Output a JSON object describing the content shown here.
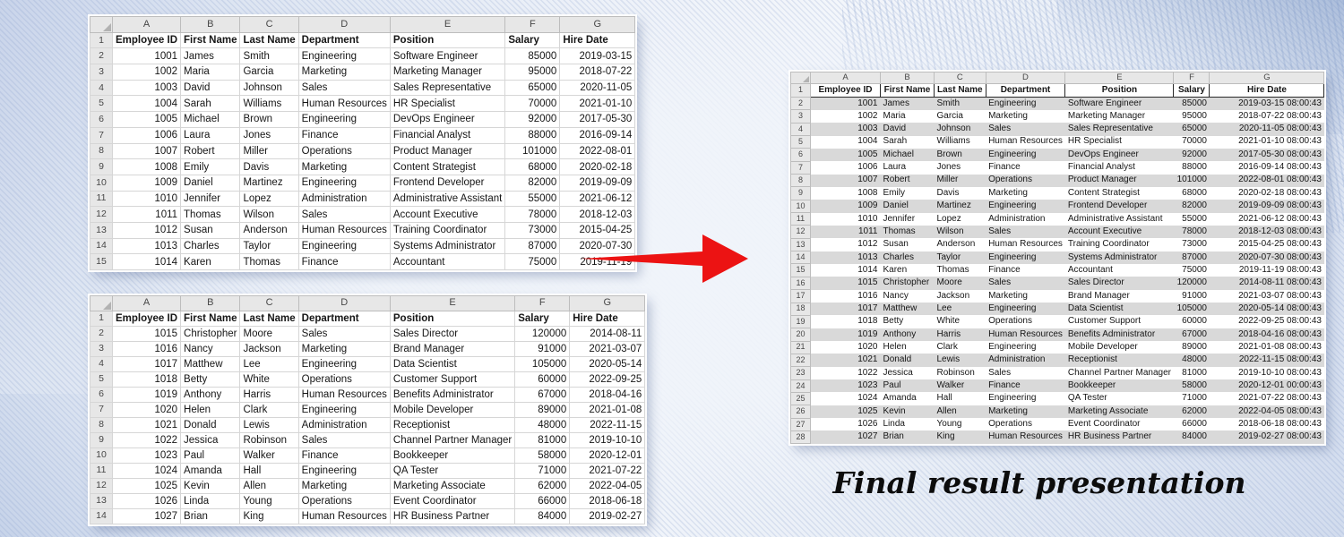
{
  "caption": "Final result presentation",
  "labels": {
    "first_row_number": "1"
  },
  "colors": {
    "arrow": "#ec1313",
    "row_band": "#d9d9d9",
    "heading_band": "#e7e7e7"
  },
  "column_letters": [
    "A",
    "B",
    "C",
    "D",
    "E",
    "F",
    "G"
  ],
  "headers": [
    "Employee ID",
    "First Name",
    "Last Name",
    "Department",
    "Position",
    "Salary",
    "Hire Date"
  ],
  "source_table_1": {
    "rows": [
      [
        "1001",
        "James",
        "Smith",
        "Engineering",
        "Software Engineer",
        "85000",
        "2019-03-15"
      ],
      [
        "1002",
        "Maria",
        "Garcia",
        "Marketing",
        "Marketing Manager",
        "95000",
        "2018-07-22"
      ],
      [
        "1003",
        "David",
        "Johnson",
        "Sales",
        "Sales Representative",
        "65000",
        "2020-11-05"
      ],
      [
        "1004",
        "Sarah",
        "Williams",
        "Human Resources",
        "HR Specialist",
        "70000",
        "2021-01-10"
      ],
      [
        "1005",
        "Michael",
        "Brown",
        "Engineering",
        "DevOps Engineer",
        "92000",
        "2017-05-30"
      ],
      [
        "1006",
        "Laura",
        "Jones",
        "Finance",
        "Financial Analyst",
        "88000",
        "2016-09-14"
      ],
      [
        "1007",
        "Robert",
        "Miller",
        "Operations",
        "Product Manager",
        "101000",
        "2022-08-01"
      ],
      [
        "1008",
        "Emily",
        "Davis",
        "Marketing",
        "Content Strategist",
        "68000",
        "2020-02-18"
      ],
      [
        "1009",
        "Daniel",
        "Martinez",
        "Engineering",
        "Frontend Developer",
        "82000",
        "2019-09-09"
      ],
      [
        "1010",
        "Jennifer",
        "Lopez",
        "Administration",
        "Administrative Assistant",
        "55000",
        "2021-06-12"
      ],
      [
        "1011",
        "Thomas",
        "Wilson",
        "Sales",
        "Account Executive",
        "78000",
        "2018-12-03"
      ],
      [
        "1012",
        "Susan",
        "Anderson",
        "Human Resources",
        "Training Coordinator",
        "73000",
        "2015-04-25"
      ],
      [
        "1013",
        "Charles",
        "Taylor",
        "Engineering",
        "Systems Administrator",
        "87000",
        "2020-07-30"
      ],
      [
        "1014",
        "Karen",
        "Thomas",
        "Finance",
        "Accountant",
        "75000",
        "2019-11-19"
      ]
    ]
  },
  "source_table_2": {
    "rows": [
      [
        "1015",
        "Christopher",
        "Moore",
        "Sales",
        "Sales Director",
        "120000",
        "2014-08-11"
      ],
      [
        "1016",
        "Nancy",
        "Jackson",
        "Marketing",
        "Brand Manager",
        "91000",
        "2021-03-07"
      ],
      [
        "1017",
        "Matthew",
        "Lee",
        "Engineering",
        "Data Scientist",
        "105000",
        "2020-05-14"
      ],
      [
        "1018",
        "Betty",
        "White",
        "Operations",
        "Customer Support",
        "60000",
        "2022-09-25"
      ],
      [
        "1019",
        "Anthony",
        "Harris",
        "Human Resources",
        "Benefits Administrator",
        "67000",
        "2018-04-16"
      ],
      [
        "1020",
        "Helen",
        "Clark",
        "Engineering",
        "Mobile Developer",
        "89000",
        "2021-01-08"
      ],
      [
        "1021",
        "Donald",
        "Lewis",
        "Administration",
        "Receptionist",
        "48000",
        "2022-11-15"
      ],
      [
        "1022",
        "Jessica",
        "Robinson",
        "Sales",
        "Channel Partner Manager",
        "81000",
        "2019-10-10"
      ],
      [
        "1023",
        "Paul",
        "Walker",
        "Finance",
        "Bookkeeper",
        "58000",
        "2020-12-01"
      ],
      [
        "1024",
        "Amanda",
        "Hall",
        "Engineering",
        "QA Tester",
        "71000",
        "2021-07-22"
      ],
      [
        "1025",
        "Kevin",
        "Allen",
        "Marketing",
        "Marketing Associate",
        "62000",
        "2022-04-05"
      ],
      [
        "1026",
        "Linda",
        "Young",
        "Operations",
        "Event Coordinator",
        "66000",
        "2018-06-18"
      ],
      [
        "1027",
        "Brian",
        "King",
        "Human Resources",
        "HR Business Partner",
        "84000",
        "2019-02-27"
      ]
    ]
  },
  "result_table": {
    "rows": [
      [
        "1001",
        "James",
        "Smith",
        "Engineering",
        "Software Engineer",
        "85000",
        "2019-03-15 08:00:43"
      ],
      [
        "1002",
        "Maria",
        "Garcia",
        "Marketing",
        "Marketing Manager",
        "95000",
        "2018-07-22 08:00:43"
      ],
      [
        "1003",
        "David",
        "Johnson",
        "Sales",
        "Sales Representative",
        "65000",
        "2020-11-05 08:00:43"
      ],
      [
        "1004",
        "Sarah",
        "Williams",
        "Human Resources",
        "HR Specialist",
        "70000",
        "2021-01-10 08:00:43"
      ],
      [
        "1005",
        "Michael",
        "Brown",
        "Engineering",
        "DevOps Engineer",
        "92000",
        "2017-05-30 08:00:43"
      ],
      [
        "1006",
        "Laura",
        "Jones",
        "Finance",
        "Financial Analyst",
        "88000",
        "2016-09-14 08:00:43"
      ],
      [
        "1007",
        "Robert",
        "Miller",
        "Operations",
        "Product Manager",
        "101000",
        "2022-08-01 08:00:43"
      ],
      [
        "1008",
        "Emily",
        "Davis",
        "Marketing",
        "Content Strategist",
        "68000",
        "2020-02-18 08:00:43"
      ],
      [
        "1009",
        "Daniel",
        "Martinez",
        "Engineering",
        "Frontend Developer",
        "82000",
        "2019-09-09 08:00:43"
      ],
      [
        "1010",
        "Jennifer",
        "Lopez",
        "Administration",
        "Administrative Assistant",
        "55000",
        "2021-06-12 08:00:43"
      ],
      [
        "1011",
        "Thomas",
        "Wilson",
        "Sales",
        "Account Executive",
        "78000",
        "2018-12-03 08:00:43"
      ],
      [
        "1012",
        "Susan",
        "Anderson",
        "Human Resources",
        "Training Coordinator",
        "73000",
        "2015-04-25 08:00:43"
      ],
      [
        "1013",
        "Charles",
        "Taylor",
        "Engineering",
        "Systems Administrator",
        "87000",
        "2020-07-30 08:00:43"
      ],
      [
        "1014",
        "Karen",
        "Thomas",
        "Finance",
        "Accountant",
        "75000",
        "2019-11-19 08:00:43"
      ],
      [
        "1015",
        "Christopher",
        "Moore",
        "Sales",
        "Sales Director",
        "120000",
        "2014-08-11 08:00:43"
      ],
      [
        "1016",
        "Nancy",
        "Jackson",
        "Marketing",
        "Brand Manager",
        "91000",
        "2021-03-07 08:00:43"
      ],
      [
        "1017",
        "Matthew",
        "Lee",
        "Engineering",
        "Data Scientist",
        "105000",
        "2020-05-14 08:00:43"
      ],
      [
        "1018",
        "Betty",
        "White",
        "Operations",
        "Customer Support",
        "60000",
        "2022-09-25 08:00:43"
      ],
      [
        "1019",
        "Anthony",
        "Harris",
        "Human Resources",
        "Benefits Administrator",
        "67000",
        "2018-04-16 08:00:43"
      ],
      [
        "1020",
        "Helen",
        "Clark",
        "Engineering",
        "Mobile Developer",
        "89000",
        "2021-01-08 08:00:43"
      ],
      [
        "1021",
        "Donald",
        "Lewis",
        "Administration",
        "Receptionist",
        "48000",
        "2022-11-15 08:00:43"
      ],
      [
        "1022",
        "Jessica",
        "Robinson",
        "Sales",
        "Channel Partner Manager",
        "81000",
        "2019-10-10 08:00:43"
      ],
      [
        "1023",
        "Paul",
        "Walker",
        "Finance",
        "Bookkeeper",
        "58000",
        "2020-12-01 00:00:43"
      ],
      [
        "1024",
        "Amanda",
        "Hall",
        "Engineering",
        "QA Tester",
        "71000",
        "2021-07-22 08:00:43"
      ],
      [
        "1025",
        "Kevin",
        "Allen",
        "Marketing",
        "Marketing Associate",
        "62000",
        "2022-04-05 08:00:43"
      ],
      [
        "1026",
        "Linda",
        "Young",
        "Operations",
        "Event Coordinator",
        "66000",
        "2018-06-18 08:00:43"
      ],
      [
        "1027",
        "Brian",
        "King",
        "Human Resources",
        "HR Business Partner",
        "84000",
        "2019-02-27 08:00:43"
      ]
    ]
  }
}
